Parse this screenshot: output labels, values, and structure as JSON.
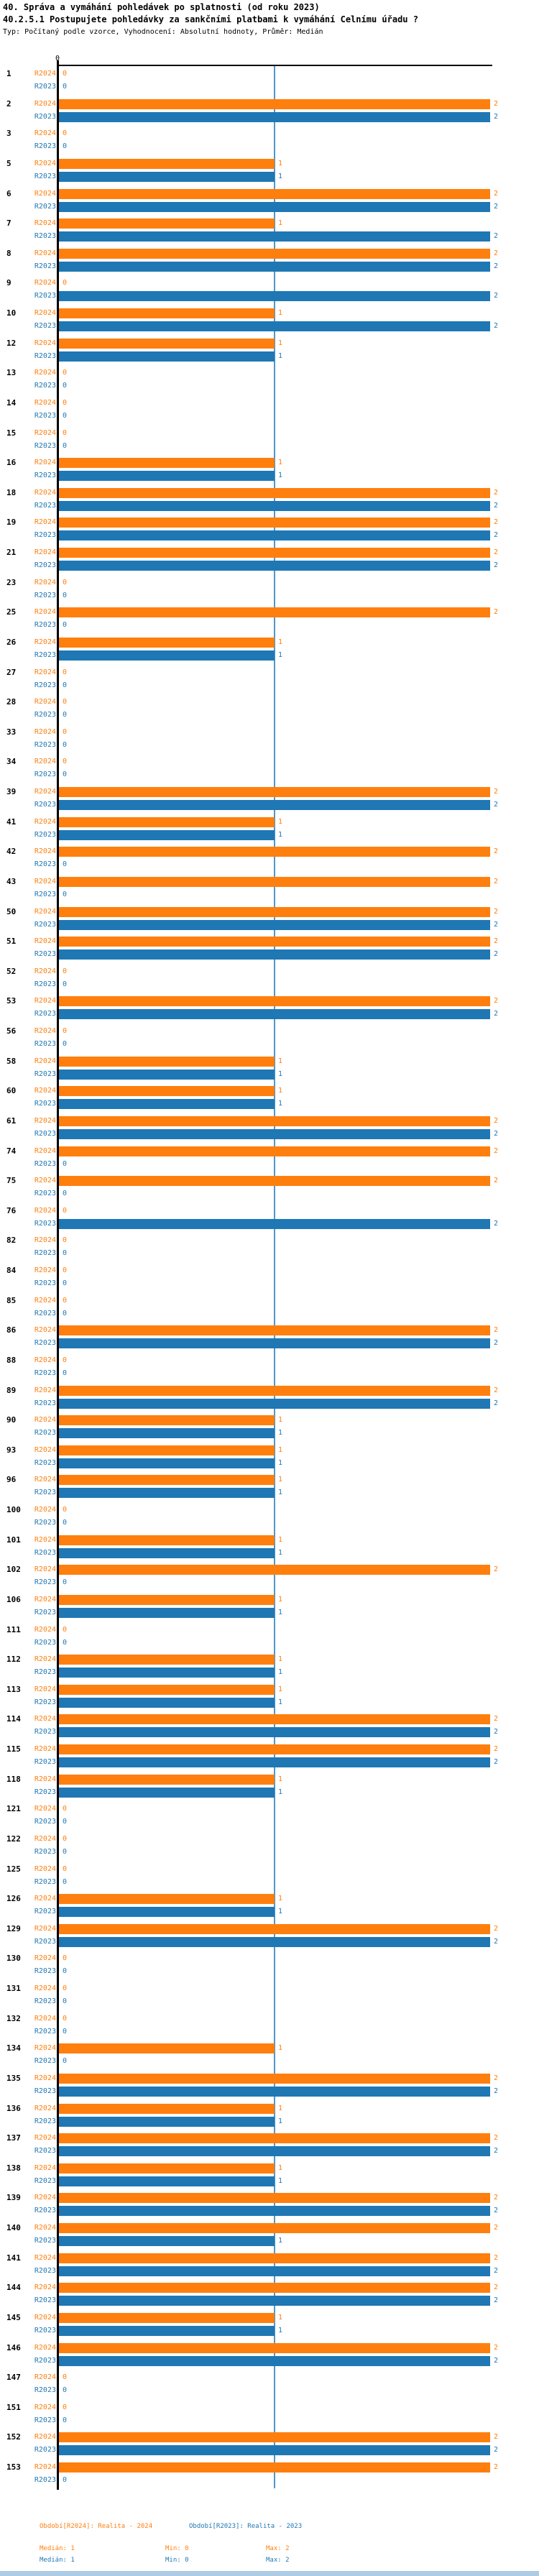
{
  "header": {
    "title1": "40. Správa a vymáhání pohledávek po splatnosti (od roku 2023)",
    "title2": "40.2.5.1 Postupujete pohledávky za sankčními platbami k vymáhání Celnímu úřadu ?",
    "subtitle": "Typ: Počítaný podle vzorce, Vyhodnocení: Absolutní hodnoty, Průměr: Medián"
  },
  "chart_data": {
    "type": "bar",
    "orientation": "horizontal",
    "title": "40.2.5.1 Postupujete pohledávky za sankčními platbami k vymáhání Celnímu úřadu ?",
    "xlabel": "",
    "ylabel": "",
    "xlim": [
      0,
      2
    ],
    "x_tick_label": "0",
    "gridline_at": 1,
    "grid": "single vertical gridline at value 1",
    "legend_position": "bottom",
    "categories": [
      1,
      2,
      3,
      5,
      6,
      7,
      8,
      9,
      10,
      12,
      13,
      14,
      15,
      16,
      18,
      19,
      21,
      23,
      25,
      26,
      27,
      28,
      33,
      34,
      39,
      41,
      42,
      43,
      50,
      51,
      52,
      53,
      56,
      58,
      60,
      61,
      74,
      75,
      76,
      82,
      84,
      85,
      86,
      88,
      89,
      90,
      93,
      96,
      100,
      101,
      102,
      106,
      111,
      112,
      113,
      114,
      115,
      118,
      121,
      122,
      125,
      126,
      129,
      130,
      131,
      132,
      134,
      135,
      136,
      137,
      138,
      139,
      140,
      141,
      144,
      145,
      146,
      147,
      151,
      152,
      153
    ],
    "series": [
      {
        "key": "R2024",
        "name": "Realita - 2024",
        "color": "#ff7f0e",
        "values": [
          0,
          2,
          0,
          1,
          2,
          1,
          2,
          0,
          1,
          1,
          0,
          0,
          0,
          1,
          2,
          2,
          2,
          0,
          2,
          1,
          0,
          0,
          0,
          0,
          2,
          1,
          2,
          2,
          2,
          2,
          0,
          2,
          0,
          1,
          1,
          2,
          2,
          2,
          0,
          0,
          0,
          0,
          2,
          0,
          2,
          1,
          1,
          1,
          0,
          1,
          2,
          1,
          0,
          1,
          1,
          2,
          2,
          1,
          0,
          0,
          0,
          1,
          2,
          0,
          0,
          0,
          1,
          2,
          1,
          2,
          1,
          2,
          2,
          2,
          2,
          1,
          2,
          0,
          0,
          2,
          2
        ]
      },
      {
        "key": "R2023",
        "name": "Realita - 2023",
        "color": "#1f77b4",
        "values": [
          0,
          2,
          0,
          1,
          2,
          2,
          2,
          2,
          2,
          1,
          0,
          0,
          0,
          1,
          2,
          2,
          2,
          0,
          0,
          1,
          0,
          0,
          0,
          0,
          2,
          1,
          0,
          0,
          2,
          2,
          0,
          2,
          0,
          1,
          1,
          2,
          0,
          0,
          2,
          0,
          0,
          0,
          2,
          0,
          2,
          1,
          1,
          1,
          0,
          1,
          0,
          1,
          0,
          1,
          1,
          2,
          2,
          1,
          0,
          0,
          0,
          1,
          2,
          0,
          0,
          0,
          0,
          2,
          1,
          2,
          1,
          2,
          1,
          2,
          2,
          1,
          2,
          0,
          0,
          2,
          0
        ]
      }
    ]
  },
  "legend": {
    "r2024_title": "Období[R2024]: Realita - 2024",
    "r2023_title": "Období[R2023]: Realita - 2023",
    "r2024_stats": {
      "median": "Medián: 1",
      "min": "Min: 0",
      "max": "Max: 2"
    },
    "r2023_stats": {
      "median": "Medián: 1",
      "min": "Min: 0",
      "max": "Max: 2"
    }
  }
}
